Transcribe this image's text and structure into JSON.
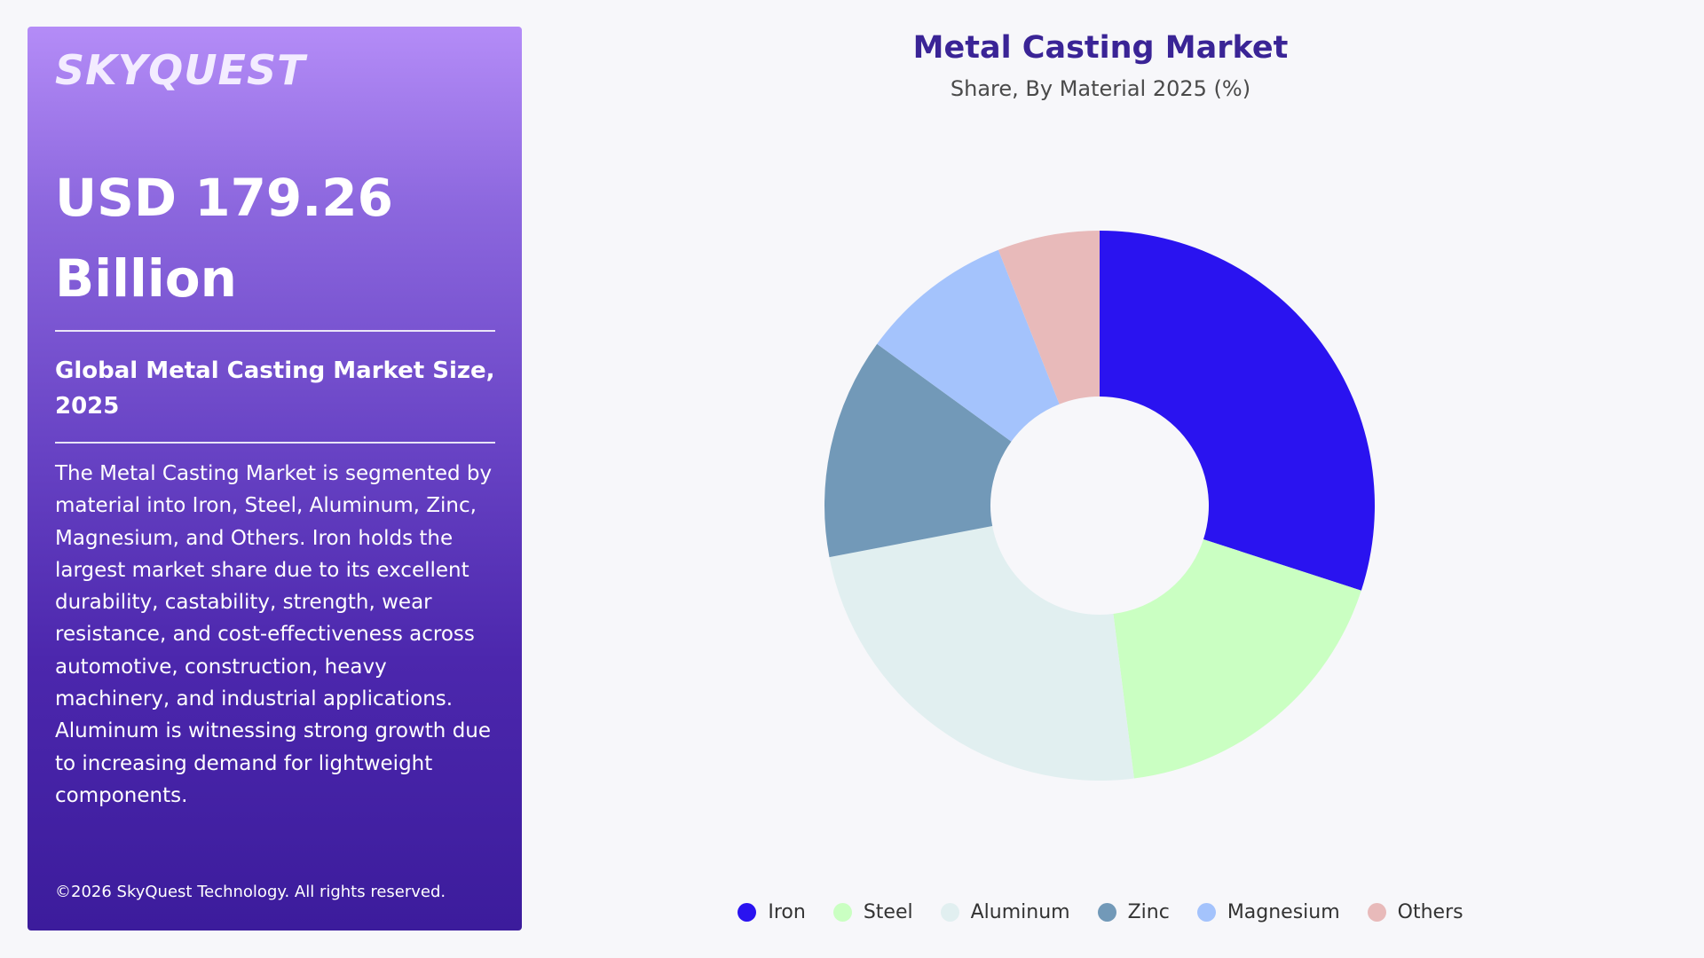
{
  "panel": {
    "logo": "SKYQUEST",
    "value": "USD 179.26 Billion",
    "subtitle": "Global Metal Casting Market Size, 2025",
    "description": "The Metal Casting Market is segmented by material into Iron, Steel, Aluminum, Zinc, Magnesium, and Others. Iron holds the largest market share due to its excellent durability, castability, strength, wear resistance, and cost-effectiveness across automotive, construction, heavy machinery, and industrial applications. Aluminum is witnessing strong growth due to increasing demand for lightweight components.",
    "copyright": "©2026 SkyQuest Technology. All rights reserved."
  },
  "chart_data": {
    "type": "pie",
    "title": "Metal Casting Market",
    "subtitle": "Share, By Material 2025 (%)",
    "donut": true,
    "legend_position": "bottom",
    "categories": [
      "Iron",
      "Steel",
      "Aluminum",
      "Zinc",
      "Magnesium",
      "Others"
    ],
    "values": [
      30,
      18,
      24,
      13,
      9,
      6
    ],
    "colors": [
      "#2a13f0",
      "#caffc2",
      "#e1eff0",
      "#7299b8",
      "#a4c3fc",
      "#e8baba"
    ]
  }
}
